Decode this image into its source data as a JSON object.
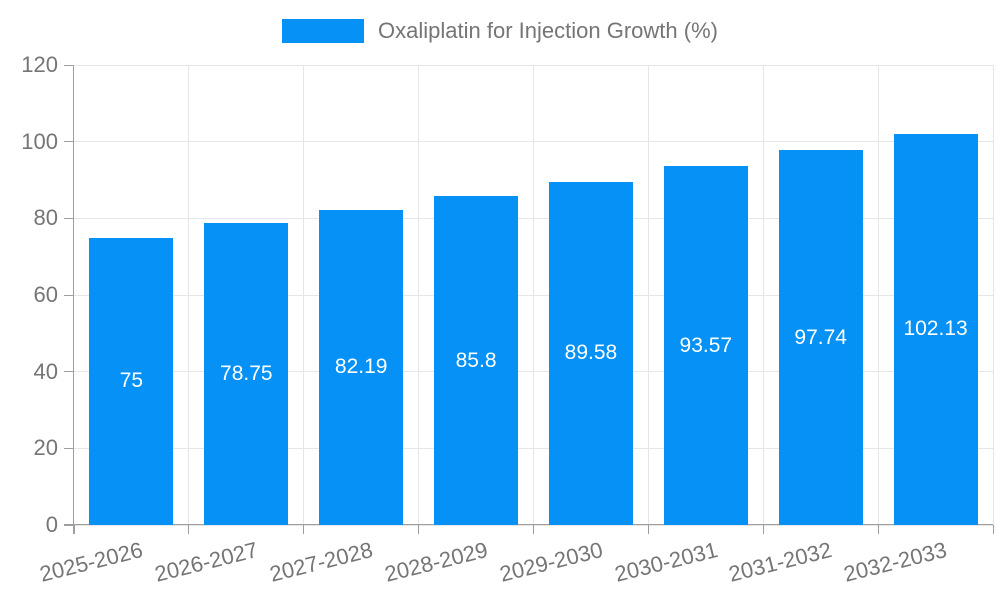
{
  "chart_data": {
    "type": "bar",
    "title": "Oxaliplatin for Injection Growth (%)",
    "legend": [
      "Oxaliplatin for Injection Growth (%)"
    ],
    "legend_position": "top-center",
    "categories": [
      "2025-2026",
      "2026-2027",
      "2027-2028",
      "2028-2029",
      "2029-2030",
      "2030-2031",
      "2031-2032",
      "2032-2033"
    ],
    "values": [
      75,
      78.75,
      82.19,
      85.8,
      89.58,
      93.57,
      97.74,
      102.13
    ],
    "xlabel": "",
    "ylabel": "",
    "ylim": [
      0,
      120
    ],
    "y_ticks": [
      0,
      20,
      40,
      60,
      80,
      100,
      120
    ],
    "grid": true,
    "value_labels_inside_bars": true,
    "colors": {
      "bar": "#0591f5",
      "axis_line": "#9e9e9e",
      "grid_line": "#e6e6e6",
      "tick_label": "#757575",
      "value_label": "#ffffff",
      "background": "#ffffff"
    }
  }
}
